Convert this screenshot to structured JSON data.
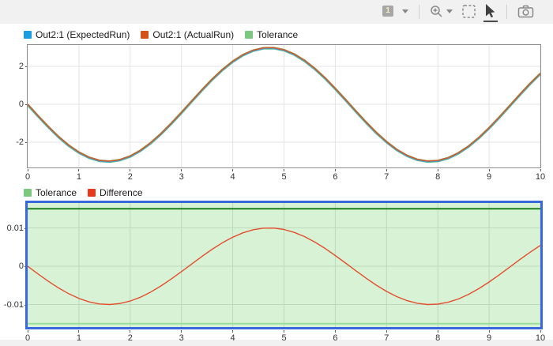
{
  "window": {
    "background": "#f1f1f1",
    "panel_background": "#ffffff",
    "selected_plot_border": "#3968dc"
  },
  "toolbar": {
    "layout_button_label": "1",
    "buttons": [
      {
        "name": "subplot-layout",
        "label": "1",
        "has_dropdown": true,
        "selected": false
      },
      {
        "name": "zoom-in",
        "has_dropdown": true,
        "selected": false
      },
      {
        "name": "fit-to-view",
        "selected": false
      },
      {
        "name": "pointer",
        "selected": true
      },
      {
        "name": "snapshot",
        "selected": false
      }
    ]
  },
  "chart_data": [
    {
      "type": "line",
      "title": "",
      "xlabel": "",
      "ylabel": "",
      "xlim": [
        0,
        10
      ],
      "ylim": [
        -3.333,
        3.125
      ],
      "xticks": [
        0,
        1,
        2,
        3,
        4,
        5,
        6,
        7,
        8,
        9,
        10
      ],
      "yticks": [
        2,
        0,
        -2
      ],
      "grid": true,
      "grid_color": "#e4e4e4",
      "legend_position": "top-left",
      "legend": [
        {
          "label": "Out2:1 (ExpectedRun)",
          "color": "#1b9de2"
        },
        {
          "label": "Out2:1 (ActualRun)",
          "color": "#d2521a"
        },
        {
          "label": "Tolerance",
          "color": "#7cc87f"
        }
      ],
      "x": [
        0,
        0.2,
        0.4,
        0.6,
        0.8,
        1,
        1.2,
        1.4,
        1.6,
        1.8,
        2,
        2.2,
        2.4,
        2.6,
        2.8,
        3,
        3.2,
        3.4,
        3.6,
        3.8,
        4,
        4.2,
        4.4,
        4.6,
        4.8,
        5,
        5.2,
        5.4,
        5.6,
        5.8,
        6,
        6.2,
        6.4,
        6.6,
        6.8,
        7,
        7.2,
        7.4,
        7.6,
        7.8,
        8,
        8.2,
        8.4,
        8.6,
        8.8,
        9,
        9.2,
        9.4,
        9.6,
        9.8,
        10
      ],
      "series": [
        {
          "name": "Tolerance",
          "color": "#86cf8a",
          "values_from": "Out2:1 (ExpectedRun)"
        },
        {
          "name": "Out2:1 (ExpectedRun)",
          "color": "#3aa5dc",
          "values": [
            0,
            -0.596,
            -1.168,
            -1.694,
            -2.152,
            -2.524,
            -2.796,
            -2.956,
            -2.999,
            -2.922,
            -2.728,
            -2.426,
            -2.026,
            -1.547,
            -1.005,
            -0.423,
            0.175,
            0.767,
            1.328,
            1.836,
            2.27,
            2.615,
            2.855,
            2.981,
            2.988,
            2.877,
            2.65,
            2.318,
            1.894,
            1.394,
            0.838,
            0.249,
            -0.35,
            -0.935,
            -1.482,
            -1.971,
            -2.381,
            -2.696,
            -2.904,
            -2.996,
            -2.968,
            -2.822,
            -2.564,
            -2.203,
            -1.755,
            -1.236,
            -0.669,
            -0.074,
            0.523,
            1.099,
            1.632
          ]
        },
        {
          "name": "Out2:1 (ActualRun)",
          "color": "#c8602f",
          "values_from": "Out2:1 (ExpectedRun)"
        }
      ]
    },
    {
      "type": "line",
      "title": "",
      "xlabel": "",
      "ylabel": "",
      "xlim": [
        0,
        10
      ],
      "ylim": [
        -0.015876,
        0.016495
      ],
      "xticks": [
        0,
        1,
        2,
        3,
        4,
        5,
        6,
        7,
        8,
        9,
        10
      ],
      "yticks": [
        0.01,
        0,
        -0.01
      ],
      "grid": true,
      "grid_color": "#bcd9bc",
      "legend_position": "top-left",
      "legend": [
        {
          "label": "Tolerance",
          "color": "#7cc87f"
        },
        {
          "label": "Difference",
          "color": "#e8391b"
        }
      ],
      "band": {
        "tolerance": 0.015,
        "fill": "#d8f2d6",
        "edge_top": "#1d801d",
        "edge_bottom": "#9adf9a"
      },
      "x": [
        0,
        0.2,
        0.4,
        0.6,
        0.8,
        1,
        1.2,
        1.4,
        1.6,
        1.8,
        2,
        2.2,
        2.4,
        2.6,
        2.8,
        3,
        3.2,
        3.4,
        3.6,
        3.8,
        4,
        4.2,
        4.4,
        4.6,
        4.8,
        5,
        5.2,
        5.4,
        5.6,
        5.8,
        6,
        6.2,
        6.4,
        6.6,
        6.8,
        7,
        7.2,
        7.4,
        7.6,
        7.8,
        8,
        8.2,
        8.4,
        8.6,
        8.8,
        9,
        9.2,
        9.4,
        9.6,
        9.8,
        10
      ],
      "series": [
        {
          "name": "Difference",
          "color": "#e34f2e",
          "values": [
            0,
            -0.00199,
            -0.00389,
            -0.00565,
            -0.00717,
            -0.00841,
            -0.00932,
            -0.00985,
            -0.01,
            -0.00974,
            -0.00909,
            -0.00809,
            -0.00675,
            -0.00515,
            -0.00335,
            -0.00141,
            0.00058,
            0.00256,
            0.00443,
            0.00612,
            0.00757,
            0.00872,
            0.00952,
            0.00994,
            0.00996,
            0.00959,
            0.00883,
            0.00773,
            0.00631,
            0.00465,
            0.00279,
            0.00083,
            -0.00117,
            -0.00312,
            -0.00494,
            -0.00657,
            -0.00794,
            -0.00899,
            -0.00968,
            -0.00999,
            -0.00989,
            -0.00941,
            -0.00855,
            -0.00734,
            -0.00585,
            -0.00412,
            -0.00223,
            -0.00025,
            0.00174,
            0.00366,
            0.00544
          ]
        }
      ]
    }
  ]
}
